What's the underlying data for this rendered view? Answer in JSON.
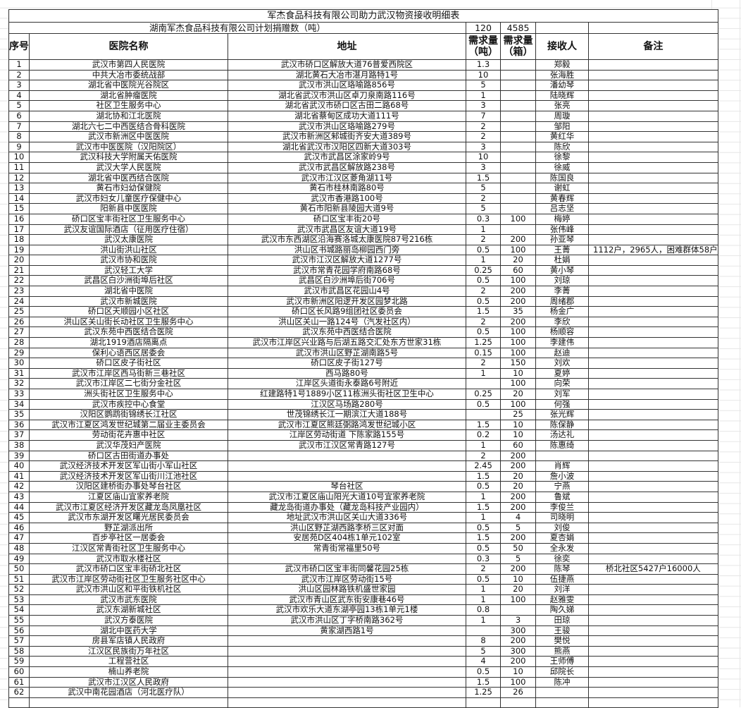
{
  "title": "军杰食品科技有限公司助力武汉物资接收明细表",
  "plan": {
    "label": "湖南军杰食品科技有限公司计划捐赠数（吨）",
    "tons": "120",
    "boxes": "4585"
  },
  "headers": {
    "no": "序号",
    "name": "医院名称",
    "address": "地址",
    "tons": "需求量（吨）",
    "boxes": "需求量（箱）",
    "receiver": "接收人",
    "note": "备注"
  },
  "rows": [
    [
      "1",
      "武汉市第四人民医院",
      "武汉市硚口区解放大道76普爱西院区",
      "1.3",
      "",
      "郑毅",
      ""
    ],
    [
      "2",
      "中共大冶市委统战部",
      "湖北黄石大冶市湛月路特1号",
      "10",
      "",
      "张海胜",
      ""
    ],
    [
      "3",
      "湖北省中医院光谷院区",
      "武汉市洪山区珞喻路856号",
      "5",
      "",
      "潘幼琴",
      ""
    ],
    [
      "4",
      "湖北省肿瘤医院",
      "湖北省武汉市洪山区卓刀泉南路116号",
      "1",
      "",
      "陆晓辉",
      ""
    ],
    [
      "5",
      "社区卫生服务中心",
      "湖北省武汉市硚口区古田二路68号",
      "3",
      "",
      "张亮",
      ""
    ],
    [
      "6",
      "湖北协和江北医院",
      "湖北省蔡甸区成功大道111号",
      "7",
      "",
      "周璇",
      ""
    ],
    [
      "7",
      "湖北六七二中西医结合骨科医院",
      "武汉市洪山区珞喻路279号",
      "2",
      "",
      "邹阳",
      ""
    ],
    [
      "8",
      "武汉市新洲区中医医院",
      "武汉市新洲区邾城街齐安大道389号",
      "2",
      "",
      "黄红华",
      ""
    ],
    [
      "9",
      "武汉市中医医院（汉阳院区）",
      "湖北省武汉市汉阳区四新大道303号",
      "3",
      "",
      "陈欣",
      ""
    ],
    [
      "10",
      "武汉科技大学附属天佑医院",
      "武汉市武昌区涂家岭9号",
      "10",
      "",
      "徐黎",
      ""
    ],
    [
      "11",
      "武汉大学人民医院",
      "武汉市武昌区解放路238号",
      "3",
      "",
      "徐威",
      ""
    ],
    [
      "12",
      "湖北省中医西结合医院",
      "武汉市江汉区菱角湖11号",
      "1.5",
      "",
      "陈国良",
      ""
    ],
    [
      "13",
      "黄石市妇幼保健院",
      "黄石市桂林南路80号",
      "5",
      "",
      "谢虹",
      ""
    ],
    [
      "14",
      "武汉市妇女儿童医疗保健中心",
      "武汉市香港路100号",
      "2",
      "",
      "黄春辉",
      ""
    ],
    [
      "15",
      "阳新县中医医院",
      "黄石市阳新县陵园大道9号",
      "5",
      "",
      "吕志坚",
      ""
    ],
    [
      "16",
      "硚口区宝丰街社区卫生服务中心",
      "硚口区宝丰街20号",
      "0.3",
      "100",
      "梅婷",
      ""
    ],
    [
      "17",
      "武汉友谊国际酒店（征用医疗住宿）",
      "武汉市武昌区友谊大道19号",
      "1",
      "",
      "张伟峰",
      ""
    ],
    [
      "18",
      "武汉太康医院",
      "武汉市东西湖区沿海赛洛城太康医院87号216栋",
      "2",
      "200",
      "孙亚琴",
      ""
    ],
    [
      "19",
      "洪山街洪山社区",
      "洪山区书城路丽岛柳园西门旁",
      "0.5",
      "100",
      "王菁",
      "1112户，2965人，困难群体58户"
    ],
    [
      "20",
      "武汉市协和医院",
      "武汉市江汉区解放大道1277号",
      "1",
      "20",
      "杜娟",
      ""
    ],
    [
      "21",
      "武汉轻工大学",
      "武汉市常青花园学府南路68号",
      "0.25",
      "60",
      "黄小琴",
      ""
    ],
    [
      "22",
      "武昌区白沙洲街埠后社区",
      "武昌区白沙洲埠后街706号",
      "0.5",
      "100",
      "刘琼",
      ""
    ],
    [
      "23",
      "湖北省中医院",
      "武汉市武昌区花园山4号",
      "2",
      "200",
      "李菁",
      ""
    ],
    [
      "24",
      "武汉市新城医院",
      "武汉市新洲区阳逻开发区园梦北路",
      "0.5",
      "200",
      "周绪郡",
      ""
    ],
    [
      "25",
      "硚口区天顺园小区社区",
      "硚口区长风路9组团社区委员会",
      "1.5",
      "35",
      "杨金广",
      ""
    ],
    [
      "26",
      "洪山区关山街长动社区卫生服务中心",
      "洪山区关山一路124号（汽发社区内）",
      "2",
      "200",
      "李欣",
      ""
    ],
    [
      "27",
      "武汉东苑中西医结合医院",
      "武汉东苑中西医结合医院",
      "0.5",
      "100",
      "杨顺容",
      ""
    ],
    [
      "28",
      "湖北1919酒店隔离点",
      "武汉市江岸区兴业路与后湖五路交汇处东方世家31栋",
      "1.25",
      "100",
      "李建伟",
      ""
    ],
    [
      "29",
      "保利心语西区居委会",
      "武汉市洪山区野芷湖南路5号",
      "0.15",
      "100",
      "赵迪",
      ""
    ],
    [
      "30",
      "硚口区皮子街社区",
      "硚口区皮子街127号",
      "2",
      "150",
      "刘欢",
      ""
    ],
    [
      "31",
      "武汉市江岸区西马街新三巷社区",
      "西马路80号",
      "1",
      "10",
      "夏婷",
      ""
    ],
    [
      "32",
      "武汉市江岸区二七街分金社区",
      "江岸区头道街永泰路6号附近",
      "",
      "100",
      "向荣",
      ""
    ],
    [
      "33",
      "洲头街社区卫生服务中心",
      "红建路特1号1889小区11栋洲头街社区卫生中心",
      "0.25",
      "20",
      "刘军",
      ""
    ],
    [
      "34",
      "武汉市疾控中心食堂",
      "江汉区马场路280号",
      "0.5",
      "100",
      "何强",
      ""
    ],
    [
      "35",
      "汉阳区鹦鹉街锦绣长江社区",
      "世茂锦绣长江一期滨江大道188号",
      "",
      "25",
      "张光辉",
      ""
    ],
    [
      "36",
      "武汉市江夏区鸿发世纪城第二届业主委员会",
      "武汉市江夏区熊廷弼路鸿发世纪城小区",
      "1.5",
      "10",
      "陈保静",
      ""
    ],
    [
      "37",
      "劳动街花卉惠中社区",
      "江岸区劳动街道 下陈家路155号",
      "0.2",
      "10",
      "汤达礼",
      ""
    ],
    [
      "38",
      "武汉华茂妇产医院",
      "武汉市江汉区常青路127号",
      "1",
      "60",
      "陈惠绮",
      ""
    ],
    [
      "39",
      "硚口区古田街道办事处",
      "",
      "2",
      "200",
      "",
      ""
    ],
    [
      "40",
      "武汉经济技术开发区军山街小军山社区",
      "",
      "2.45",
      "200",
      "肖辉",
      ""
    ],
    [
      "41",
      "武汉经济技术开发区军山街川江池社区",
      "",
      "1.5",
      "20",
      "詹小波",
      ""
    ],
    [
      "42",
      "汉阳区建桥街办事处琴台社区",
      "琴台社区",
      "0.5",
      "20",
      "宁燕",
      ""
    ],
    [
      "43",
      "江夏区庙山宜家养老院",
      "武汉市江夏区庙山阳光大道10号宜家养老院",
      "1",
      "200",
      "鲁斌",
      ""
    ],
    [
      "44",
      "武汉市江夏区经济开发区藏龙岛凤凰社区",
      "藏龙岛街道办事处（藏龙岛科技产业园内）",
      "1.5",
      "200",
      "李俊兰",
      ""
    ],
    [
      "45",
      "武汉市东湖开发区曙光居民委员会",
      "地址武汉市洪山区关山大道336号",
      "1",
      "4",
      "司晓明",
      ""
    ],
    [
      "46",
      "野芷湖派出所",
      "洪山区野芷湖西路李桥三区对面",
      "0.5",
      "5",
      "刘俊",
      ""
    ],
    [
      "47",
      "百步亭社区一居委会",
      "安居苑D区404栋1单元102室",
      "1.5",
      "200",
      "夏杏娟",
      ""
    ],
    [
      "48",
      "江汉区常青街社区卫生服务中心",
      "常青街常福里50号",
      "0.5",
      "50",
      "全永发",
      ""
    ],
    [
      "49",
      "武汉市取水楼社区",
      "",
      "0.3",
      "5",
      "徐奕",
      ""
    ],
    [
      "50",
      "武汉市硚口区宝丰街硚北社区",
      "武汉市硚口区宝丰街同馨花园25栋",
      "2",
      "200",
      "陈琴",
      "桥北社区5427户16000人"
    ],
    [
      "51",
      "武汉市江岸区劳动街社区卫生服务社区中心",
      "武汉市江岸区劳动街15号",
      "0.5",
      "10",
      "伍捷燕",
      ""
    ],
    [
      "52",
      "武汉市洪山区和平街铁机社区",
      "洪山区园林路铁机盛世家园",
      "1",
      "20",
      "刘洋",
      ""
    ],
    [
      "53",
      "武汉市武东医院",
      "武汉市青山区武东街安康巷46号",
      "1",
      "100",
      "赵雅雯",
      ""
    ],
    [
      "54",
      "武汉东湖新城社区",
      "武汉市欢乐大道东湖亭园13栋1单元1楼",
      "0.8",
      "",
      "陶久娣",
      ""
    ],
    [
      "55",
      "武汉方泰医院",
      "武汉市洪山区丁字桥南路362号",
      "1",
      "3",
      "田琼",
      ""
    ],
    [
      "56",
      "湖北中医药大学",
      "黄家湖西路1号",
      "",
      "300",
      "王骏",
      ""
    ],
    [
      "57",
      "房县军店镇人民政府",
      "",
      "8",
      "200",
      "樊悦",
      ""
    ],
    [
      "58",
      "江汉区民族街万年社区",
      "",
      "5",
      "300",
      "熊燕",
      ""
    ],
    [
      "59",
      "工程营社区",
      "",
      "4",
      "200",
      "王师傅",
      ""
    ],
    [
      "60",
      "楠山养老院",
      "",
      "0.5",
      "10",
      "邱院长",
      ""
    ],
    [
      "61",
      "武汉市江汉区人民政府",
      "",
      "1.5",
      "100",
      "陈冲",
      ""
    ],
    [
      "62",
      "武汉中南花园酒店（河北医疗队）",
      "",
      "1.25",
      "26",
      "",
      ""
    ]
  ]
}
